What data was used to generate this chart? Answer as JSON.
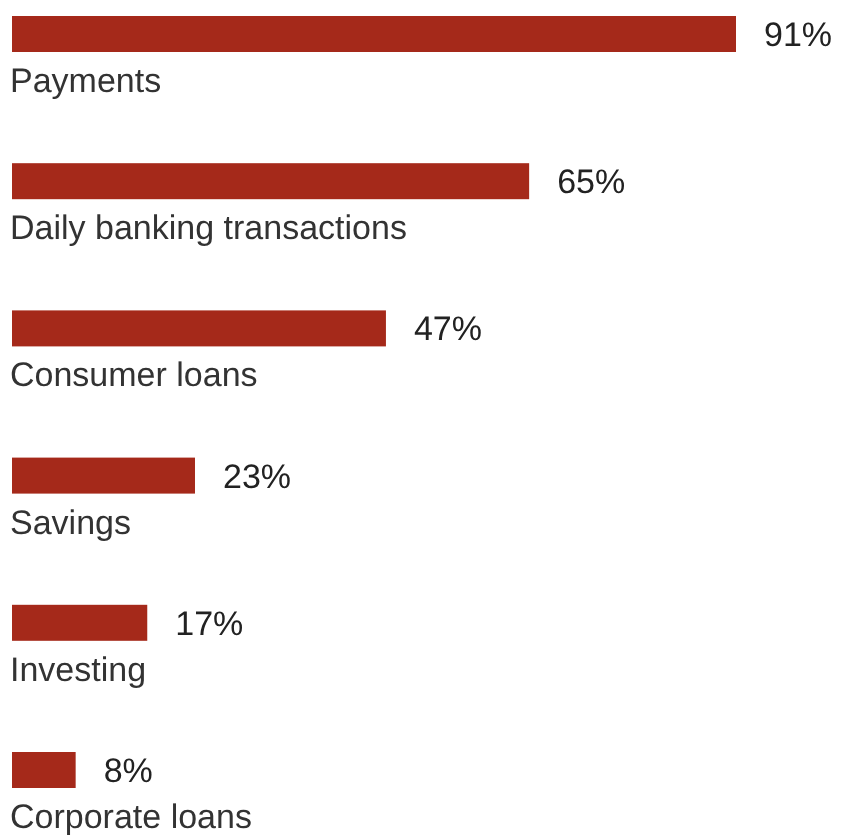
{
  "chart_data": {
    "type": "bar",
    "orientation": "horizontal",
    "categories": [
      "Payments",
      "Daily banking transactions",
      "Consumer loans",
      "Savings",
      "Investing",
      "Corporate loans"
    ],
    "values": [
      91,
      65,
      47,
      23,
      17,
      8
    ],
    "value_labels": [
      "91%",
      "65%",
      "47%",
      "23%",
      "17%",
      "8%"
    ],
    "color": "#a5291a"
  }
}
